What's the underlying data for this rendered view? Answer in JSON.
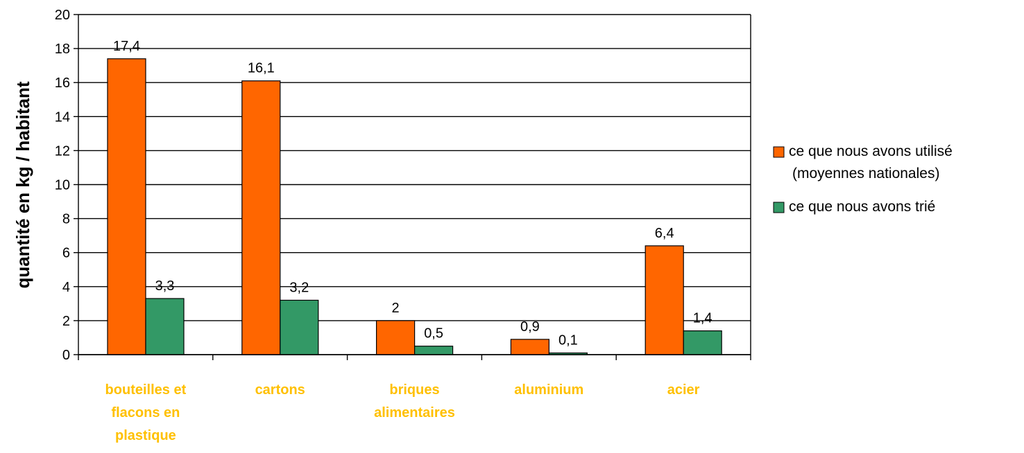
{
  "chart_data": {
    "type": "bar",
    "categories": [
      [
        "bouteilles et",
        "flacons en",
        "plastique"
      ],
      [
        "cartons"
      ],
      [
        "briques",
        "alimentaires"
      ],
      [
        "aluminium"
      ],
      [
        "acier"
      ]
    ],
    "series": [
      {
        "name": "ce que nous avons utilisé (moyennes nationales)",
        "name_lines": [
          "ce que nous avons utilisé",
          "(moyennes nationales)"
        ],
        "color": "#ff6600",
        "values": [
          17.4,
          16.1,
          2,
          0.9,
          6.4
        ],
        "labels": [
          "17,4",
          "16,1",
          "2",
          "0,9",
          "6,4"
        ]
      },
      {
        "name": "ce que nous avons trié",
        "name_lines": [
          "ce que nous avons trié"
        ],
        "color": "#339966",
        "values": [
          3.3,
          3.2,
          0.5,
          0.1,
          1.4
        ],
        "labels": [
          "3,3",
          "3,2",
          "0,5",
          "0,1",
          "1,4"
        ]
      }
    ],
    "ylabel": "quantité en kg / habitant",
    "xlabel": "",
    "ylim": [
      0,
      20
    ],
    "yticks": [
      0,
      2,
      4,
      6,
      8,
      10,
      12,
      14,
      16,
      18,
      20
    ],
    "grid": true,
    "legend": "right",
    "category_label_color": "#ffc000"
  }
}
